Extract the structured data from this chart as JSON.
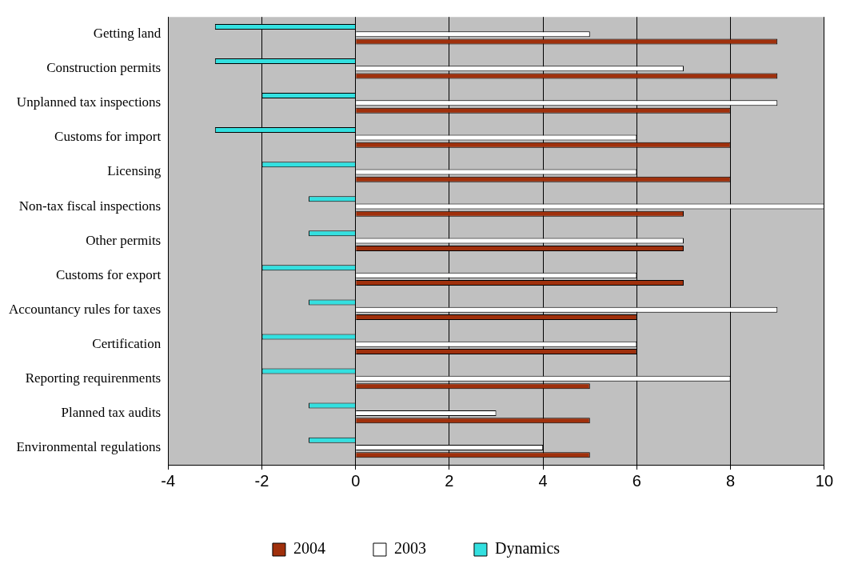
{
  "chart_data": {
    "type": "bar",
    "orientation": "horizontal",
    "categories": [
      "Getting land",
      "Construction permits",
      "Unplanned tax inspections",
      "Customs for import",
      "Licensing",
      "Non-tax fiscal inspections",
      "Other permits",
      "Customs for export",
      "Accountancy rules for taxes",
      "Certification",
      "Reporting requirenments",
      "Planned tax audits",
      "Environmental regulations"
    ],
    "series": [
      {
        "name": "2004",
        "color": "#a0300c",
        "values": [
          9,
          9,
          8,
          8,
          8,
          7,
          7,
          7,
          6,
          6,
          5,
          5,
          5
        ]
      },
      {
        "name": "2003",
        "color": "#ffffff",
        "values": [
          5,
          7,
          9,
          6,
          6,
          10,
          7,
          6,
          9,
          6,
          8,
          3,
          4
        ]
      },
      {
        "name": "Dynamics",
        "color": "#33e0e0",
        "values": [
          -3,
          -3,
          -2,
          -3,
          -2,
          -1,
          -1,
          -2,
          -1,
          -2,
          -2,
          -1,
          -1
        ]
      }
    ],
    "xlim": [
      -4,
      10
    ],
    "xticks": [
      -4,
      -2,
      0,
      2,
      4,
      6,
      8,
      10
    ],
    "grid": "x",
    "legend": "bottom"
  }
}
